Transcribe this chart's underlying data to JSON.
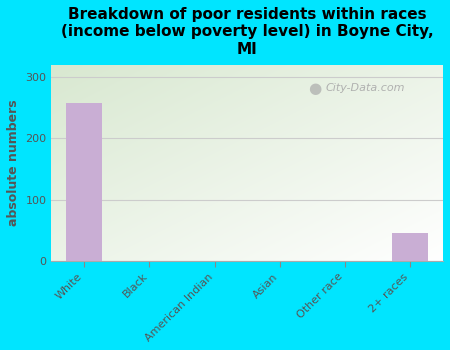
{
  "title": "Breakdown of poor residents within races\n(income below poverty level) in Boyne City,\nMI",
  "categories": [
    "White",
    "Black",
    "American Indian",
    "Asian",
    "Other race",
    "2+ races"
  ],
  "values": [
    258,
    0,
    0,
    0,
    0,
    45
  ],
  "bar_color": "#c9aed4",
  "ylabel": "absolute numbers",
  "ylim": [
    0,
    320
  ],
  "yticks": [
    0,
    100,
    200,
    300
  ],
  "background_color": "#00e5ff",
  "plot_bg_top_left": "#d8e8d0",
  "plot_bg_bottom_right": "#ffffff",
  "title_fontsize": 11,
  "axis_label_fontsize": 9,
  "tick_fontsize": 8,
  "tick_color": "#555555",
  "ylabel_color": "#555555",
  "watermark": "City-Data.com",
  "grid_color": "#cccccc"
}
